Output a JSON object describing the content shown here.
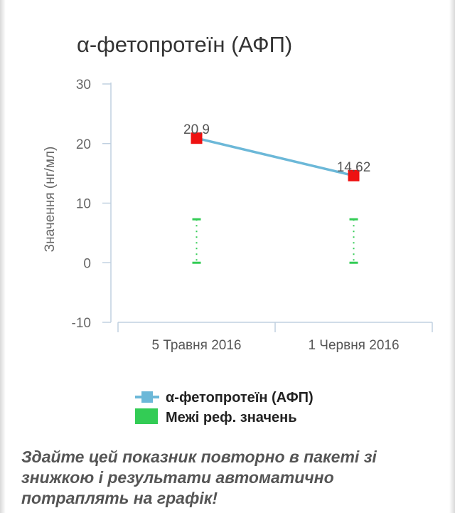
{
  "chart_data": {
    "type": "line",
    "title": "α-фетопротеїн (АФП)",
    "ylabel": "Значення (нг/мл)",
    "categories": [
      "5 Травня 2016",
      "1 Червня 2016"
    ],
    "ylim": [
      -10,
      30
    ],
    "yticks": [
      "30",
      "20",
      "10",
      "0",
      "-10"
    ],
    "yticks_values": [
      30,
      20,
      10,
      0,
      -10
    ],
    "series": [
      {
        "name": "α-фетопротеїн (АФП)",
        "values": [
          20.9,
          14.62
        ],
        "data_labels": [
          "20.9",
          "14.62"
        ],
        "line_color": "#6cb8d8",
        "marker_color": "#ee1111"
      }
    ],
    "reference_range": {
      "name": "Межі реф. значень",
      "low": 0,
      "high": 7.29,
      "color": "#33cc55"
    },
    "legend_position": "bottom"
  },
  "notice": "Здайте цей показник повторно в пакеті зі знижкою і результати автоматично потраплять на графік!"
}
